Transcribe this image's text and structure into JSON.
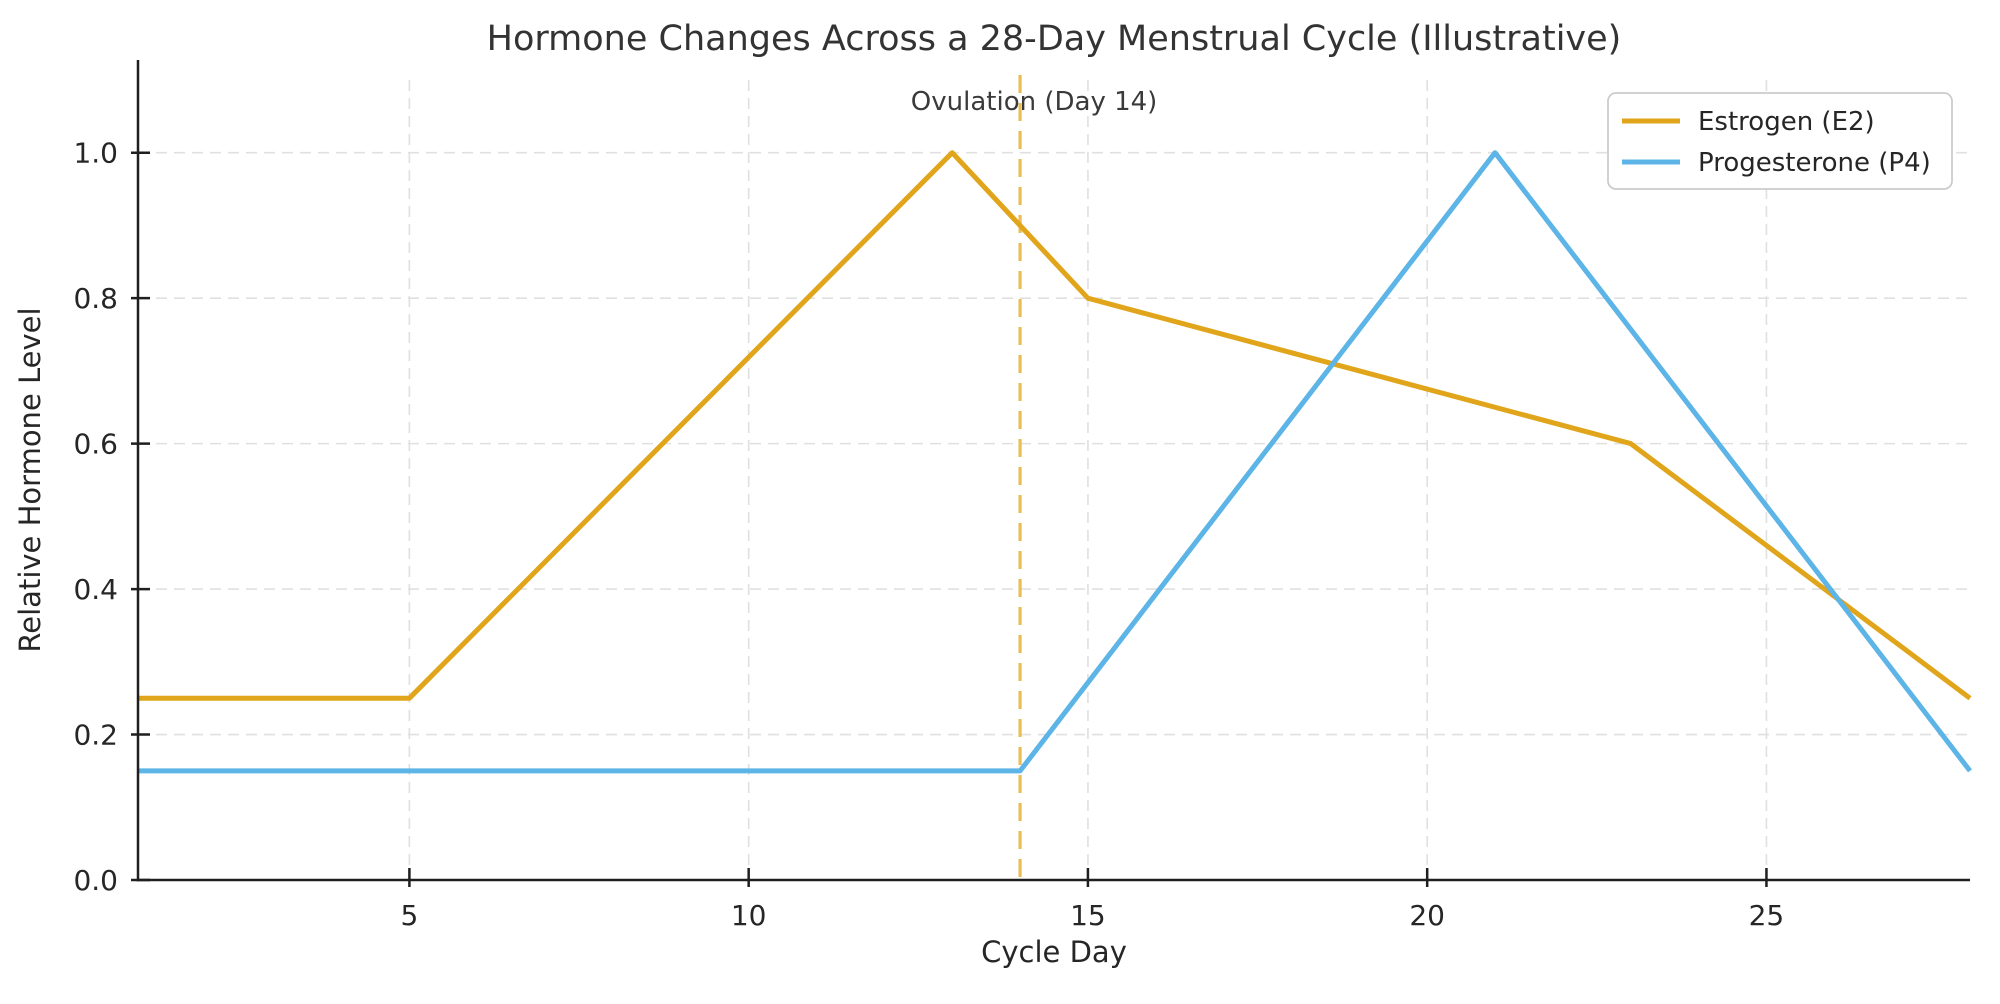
{
  "chart_data": {
    "type": "line",
    "title": "Hormone Changes Across a 28-Day Menstrual Cycle (Illustrative)",
    "xlabel": "Cycle Day",
    "ylabel": "Relative Hormone Level",
    "xlim": [
      1,
      28
    ],
    "ylim": [
      0,
      1.1
    ],
    "xticks": [
      5,
      10,
      15,
      20,
      25
    ],
    "yticks": [
      0.0,
      0.2,
      0.4,
      0.6,
      0.8,
      1.0
    ],
    "ytick_labels": [
      "0.0",
      "0.2",
      "0.4",
      "0.6",
      "0.8",
      "1.0"
    ],
    "grid": {
      "visible": true,
      "style": "dashed",
      "color": "#e0e0e0"
    },
    "legend_position": "upper right",
    "series": [
      {
        "name": "Estrogen (E2)",
        "color": "#E1A51B",
        "x": [
          1,
          5,
          13,
          14,
          15,
          23,
          28
        ],
        "y": [
          0.25,
          0.25,
          1.0,
          0.9,
          0.8,
          0.6,
          0.25
        ]
      },
      {
        "name": "Progesterone (P4)",
        "color": "#5CB5E6",
        "x": [
          1,
          14,
          21,
          28
        ],
        "y": [
          0.15,
          0.15,
          1.0,
          0.15
        ]
      }
    ],
    "annotation": {
      "text": "Ovulation (Day 14)",
      "x": 14,
      "line_color": "#EBBE55",
      "line_style": "dashed"
    },
    "colors": {
      "spine": "#1f1f1f",
      "tick": "#1f1f1f",
      "grid": "#e0e0e0",
      "background": "#ffffff"
    }
  }
}
